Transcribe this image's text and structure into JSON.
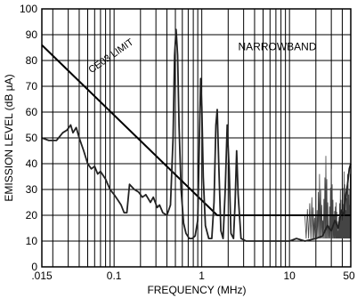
{
  "chart_data": {
    "type": "line",
    "title": "",
    "xlabel": "FREQUENCY (MHz)",
    "ylabel": "EMISSION LEVEL (dB µA)",
    "x_scale": "log",
    "xlim": [
      0.015,
      50
    ],
    "ylim": [
      0,
      100
    ],
    "grid": true,
    "x_tick_labels": [
      {
        "value": 0.015,
        "label": ".015"
      },
      {
        "value": 0.1,
        "label": "0.1"
      },
      {
        "value": 1,
        "label": "1"
      },
      {
        "value": 10,
        "label": "10"
      },
      {
        "value": 50,
        "label": "50"
      }
    ],
    "y_ticks": [
      0,
      10,
      20,
      30,
      40,
      50,
      60,
      70,
      80,
      90,
      100
    ],
    "annotations": [
      {
        "text": "NARROWBAND",
        "x": 2.6,
        "y": 84
      },
      {
        "text": "CE03 LIMIT",
        "x": 0.055,
        "y": 75,
        "rotation": -35
      }
    ],
    "series": [
      {
        "name": "CE03 LIMIT",
        "color": "#000000",
        "points": [
          [
            0.015,
            86
          ],
          [
            1.5,
            20
          ],
          [
            50,
            20
          ]
        ]
      },
      {
        "name": "",
        "color": "#222222",
        "points": [
          [
            0.015,
            50
          ],
          [
            0.018,
            49
          ],
          [
            0.022,
            49
          ],
          [
            0.026,
            52
          ],
          [
            0.029,
            53
          ],
          [
            0.032,
            55
          ],
          [
            0.034,
            52
          ],
          [
            0.037,
            54
          ],
          [
            0.04,
            50
          ],
          [
            0.045,
            45
          ],
          [
            0.05,
            40
          ],
          [
            0.055,
            38
          ],
          [
            0.06,
            39
          ],
          [
            0.065,
            36
          ],
          [
            0.07,
            37
          ],
          [
            0.08,
            34
          ],
          [
            0.09,
            30
          ],
          [
            0.1,
            28
          ],
          [
            0.11,
            26
          ],
          [
            0.12,
            24
          ],
          [
            0.13,
            21
          ],
          [
            0.14,
            21
          ],
          [
            0.15,
            32
          ],
          [
            0.17,
            30
          ],
          [
            0.19,
            29
          ],
          [
            0.21,
            27
          ],
          [
            0.23,
            28
          ],
          [
            0.26,
            25
          ],
          [
            0.28,
            27
          ],
          [
            0.31,
            23
          ],
          [
            0.33,
            24
          ],
          [
            0.36,
            21
          ],
          [
            0.4,
            20
          ],
          [
            0.44,
            24
          ],
          [
            0.47,
            50
          ],
          [
            0.49,
            82
          ],
          [
            0.51,
            92
          ],
          [
            0.53,
            82
          ],
          [
            0.55,
            55
          ],
          [
            0.58,
            30
          ],
          [
            0.62,
            17
          ],
          [
            0.66,
            13
          ],
          [
            0.72,
            11
          ],
          [
            0.78,
            11
          ],
          [
            0.84,
            12
          ],
          [
            0.9,
            18
          ],
          [
            0.94,
            50
          ],
          [
            0.97,
            73
          ],
          [
            1.0,
            62
          ],
          [
            1.04,
            35
          ],
          [
            1.1,
            16
          ],
          [
            1.2,
            11
          ],
          [
            1.3,
            11
          ],
          [
            1.38,
            25
          ],
          [
            1.45,
            55
          ],
          [
            1.5,
            61
          ],
          [
            1.56,
            40
          ],
          [
            1.65,
            14
          ],
          [
            1.75,
            11
          ],
          [
            1.85,
            30
          ],
          [
            1.95,
            55
          ],
          [
            2.05,
            38
          ],
          [
            2.15,
            13
          ],
          [
            2.3,
            11
          ],
          [
            2.4,
            25
          ],
          [
            2.5,
            45
          ],
          [
            2.6,
            28
          ],
          [
            2.8,
            11
          ],
          [
            3.2,
            10
          ],
          [
            4,
            10
          ],
          [
            6,
            10
          ],
          [
            8,
            10
          ],
          [
            10,
            10
          ],
          [
            12,
            11
          ],
          [
            15,
            10
          ],
          [
            20,
            11
          ],
          [
            24,
            12
          ],
          [
            27,
            16
          ],
          [
            30,
            14
          ],
          [
            33,
            18
          ],
          [
            36,
            15
          ],
          [
            39,
            22
          ],
          [
            42,
            20
          ],
          [
            44,
            28
          ],
          [
            46,
            32
          ],
          [
            48,
            38
          ],
          [
            50,
            40
          ]
        ]
      }
    ],
    "noise_envelope": {
      "description_only_for_drawing": false,
      "points": [
        [
          15,
          20
        ],
        [
          18,
          27
        ],
        [
          20,
          15
        ],
        [
          22,
          36
        ],
        [
          24,
          18
        ],
        [
          26,
          43
        ],
        [
          28,
          16
        ],
        [
          30,
          38
        ],
        [
          32,
          20
        ],
        [
          34,
          25
        ],
        [
          36,
          14
        ],
        [
          38,
          30
        ],
        [
          40,
          18
        ],
        [
          42,
          37
        ],
        [
          44,
          22
        ],
        [
          46,
          36
        ],
        [
          48,
          24
        ],
        [
          50,
          42
        ]
      ]
    }
  }
}
